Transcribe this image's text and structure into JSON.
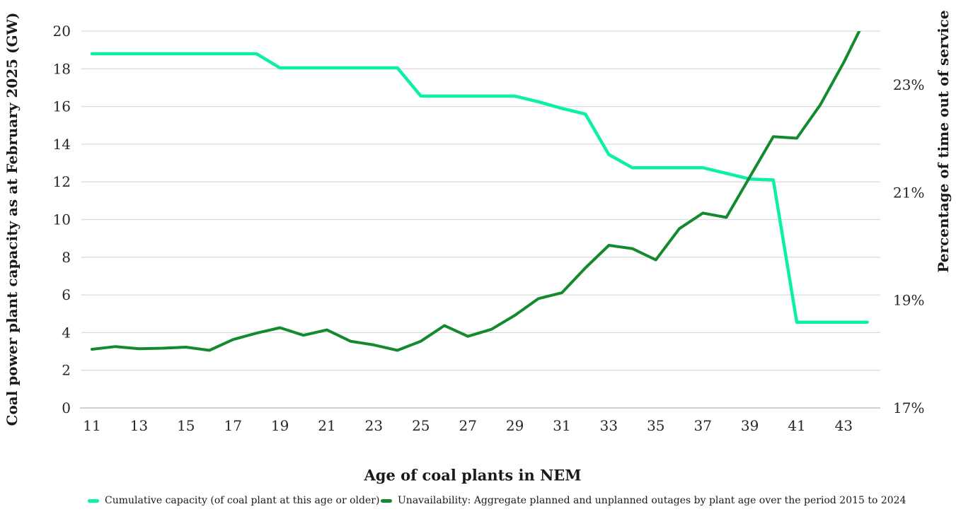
{
  "chart_data": {
    "type": "line",
    "x": [
      11,
      12,
      13,
      14,
      15,
      16,
      17,
      18,
      19,
      20,
      21,
      22,
      23,
      24,
      25,
      26,
      27,
      28,
      29,
      30,
      31,
      32,
      33,
      34,
      35,
      36,
      37,
      38,
      39,
      40,
      41,
      42,
      43,
      44
    ],
    "series": [
      {
        "name": "Cumulative capacity (of coal plant at this age or older)",
        "axis": "left",
        "color": "#0BEFA9",
        "values": [
          18.8,
          18.8,
          18.8,
          18.8,
          18.8,
          18.8,
          18.8,
          18.8,
          18.05,
          18.05,
          18.05,
          18.05,
          18.05,
          18.05,
          16.55,
          16.55,
          16.55,
          16.55,
          16.55,
          16.25,
          15.9,
          15.6,
          13.45,
          12.75,
          12.75,
          12.75,
          12.75,
          12.45,
          12.15,
          12.1,
          4.55,
          4.55,
          4.55,
          4.55
        ]
      },
      {
        "name": "Unavailability: Aggregate planned and unplanned outages by plant age over the period 2015 to 2024",
        "axis": "right",
        "color": "#128A2D",
        "values": [
          18.09,
          18.14,
          18.1,
          18.11,
          18.13,
          18.07,
          18.27,
          18.39,
          18.49,
          18.35,
          18.45,
          18.24,
          18.17,
          18.07,
          18.24,
          18.53,
          18.33,
          18.46,
          18.72,
          19.03,
          19.14,
          19.6,
          20.02,
          19.96,
          19.75,
          20.33,
          20.62,
          20.54,
          21.29,
          22.04,
          22.01,
          22.63,
          23.42,
          24.3
        ]
      }
    ],
    "left_axis": {
      "label": "Coal power plant capacity as at February 2025 (GW)",
      "ticks": [
        0,
        2,
        4,
        6,
        8,
        10,
        12,
        14,
        16,
        18,
        20
      ],
      "range": [
        0,
        20
      ]
    },
    "right_axis": {
      "label": "Percentage of time out of service",
      "ticks": [
        "17%",
        "19%",
        "21%",
        "23%"
      ],
      "tick_values": [
        17,
        19,
        21,
        23
      ],
      "range": [
        17,
        24
      ]
    },
    "x_axis": {
      "label": "Age of coal plants in NEM",
      "ticks": [
        11,
        13,
        15,
        17,
        19,
        21,
        23,
        25,
        27,
        29,
        31,
        33,
        35,
        37,
        39,
        41,
        43
      ],
      "range": [
        11,
        44
      ]
    },
    "grid": true,
    "legend_position": "bottom",
    "colors": {
      "gridline": "#DCDCDC",
      "axis_line": "#C2C2C2",
      "tick_text": "#262626"
    }
  }
}
